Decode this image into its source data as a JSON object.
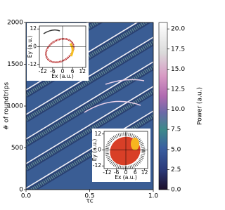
{
  "chart_data": [
    {
      "type": "heatmap",
      "xlabel": "τc",
      "ylabel": "# of roundtrips",
      "xlim": [
        0,
        1
      ],
      "xticks": [
        {
          "value": 0,
          "label": "0.0"
        },
        {
          "value": 0.5,
          "label": "0.5"
        },
        {
          "value": 1,
          "label": "1.0"
        }
      ],
      "ylim": [
        0,
        2000
      ],
      "yticks": [
        0,
        500,
        1000,
        1500,
        2000
      ],
      "colorbar": {
        "label": "Power (a.u.)",
        "lim": [
          0,
          20.8
        ],
        "ticks": [
          {
            "value": 0,
            "label": "0.0"
          },
          {
            "value": 2.5,
            "label": "2.5"
          },
          {
            "value": 5,
            "label": "5.0"
          },
          {
            "value": 7.5,
            "label": "7.5"
          },
          {
            "value": 10,
            "label": "10.0"
          },
          {
            "value": 12.5,
            "label": "12.5"
          },
          {
            "value": 15,
            "label": "15.0"
          },
          {
            "value": 17.5,
            "label": "17.5"
          },
          {
            "value": 20,
            "label": "20.0"
          }
        ]
      }
    },
    {
      "type": "inset",
      "xlabel": "Ex (a.u.)",
      "ylabel": "Ey (a.u.)",
      "xlim": [
        -14,
        14
      ],
      "xticks": [
        -12,
        -6,
        0,
        6,
        12
      ],
      "ylim": [
        -14,
        14
      ],
      "yticks": [
        -12,
        0,
        12
      ]
    },
    {
      "type": "inset",
      "xlabel": "Ex (a.u.)",
      "ylabel": "Ey (a.u.)",
      "xlim": [
        -14,
        14
      ],
      "xticks": [
        -12,
        -6,
        0,
        6,
        12
      ],
      "ylim": [
        -14,
        14
      ],
      "yticks": [
        -12,
        0,
        12
      ]
    }
  ]
}
